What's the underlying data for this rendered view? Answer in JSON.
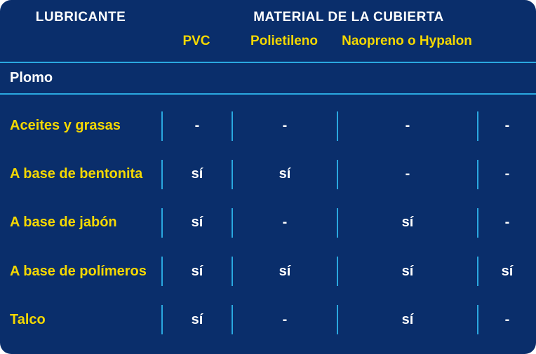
{
  "colors": {
    "background": "#0a2e6b",
    "header_text": "#ffffff",
    "accent_text": "#f5d800",
    "cell_text": "#ffffff",
    "divider": "#2aa8e0"
  },
  "header": {
    "lubricante": "LUBRICANTE",
    "material": "MATERIAL DE LA CUBIERTA"
  },
  "subheaders": {
    "col1": "PVC",
    "col2": "Polietileno",
    "col3": "Naopreno o Hypalon",
    "col4": ""
  },
  "section": {
    "title": "Plomo"
  },
  "rows": [
    {
      "label": "Aceites y grasas",
      "c1": "-",
      "c2": "-",
      "c3": "-",
      "c4": "-"
    },
    {
      "label": "A base de bentonita",
      "c1": "sí",
      "c2": "sí",
      "c3": "-",
      "c4": "-"
    },
    {
      "label": "A base de jabón",
      "c1": "sí",
      "c2": "-",
      "c3": "sí",
      "c4": "-"
    },
    {
      "label": "A base de polímeros",
      "c1": "sí",
      "c2": "sí",
      "c3": "sí",
      "c4": "sí"
    },
    {
      "label": "Talco",
      "c1": "sí",
      "c2": "-",
      "c3": "sí",
      "c4": "-"
    }
  ]
}
